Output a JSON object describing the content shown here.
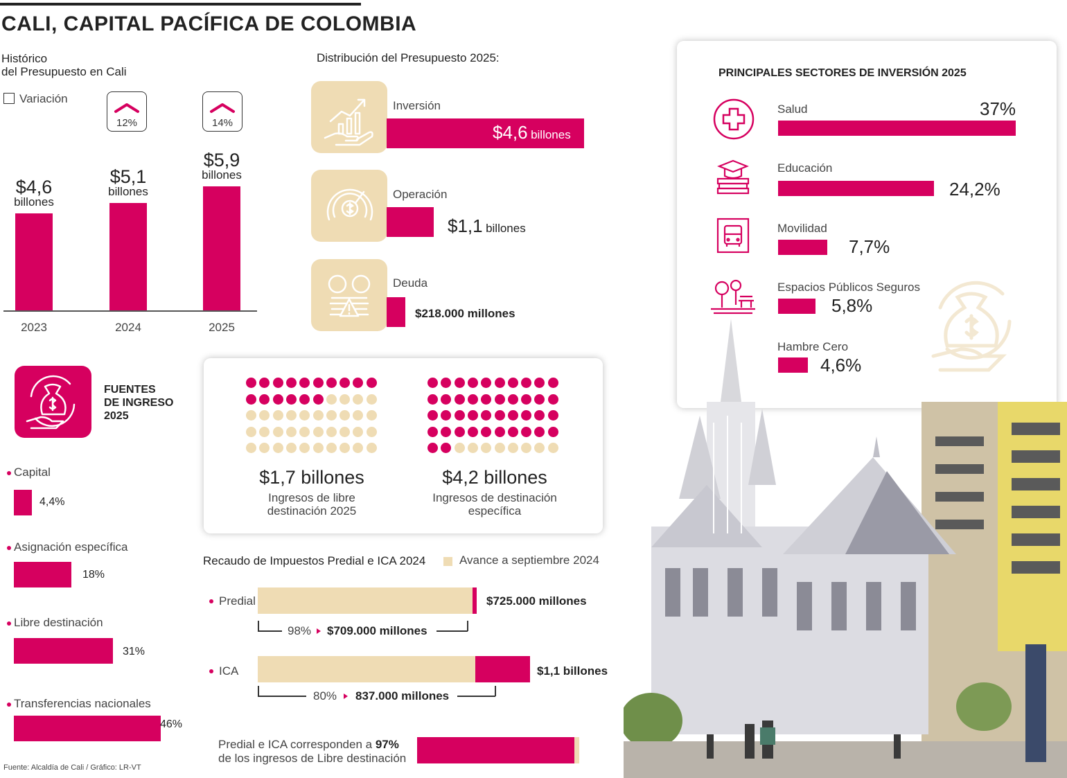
{
  "title": "CALI, CAPITAL PACÍFICA DE COLOMBIA",
  "source": "Fuente: Alcaldía de Cali / Gráfico: LR-VT",
  "colors": {
    "accent": "#d6005f",
    "secondary": "#efdcb4",
    "text": "#222222"
  },
  "historic": {
    "title_line1": "Histórico",
    "title_line2": "del Presupuesto en Cali",
    "legend": "Variación",
    "unit": "billones",
    "variations": [
      "12%",
      "14%"
    ]
  },
  "distribution": {
    "title": "Distribución del Presupuesto 2025:",
    "items": [
      {
        "label": "Inversión",
        "value": "$4,6",
        "unit": "billones",
        "icon": "investment-hand-chart-icon"
      },
      {
        "label": "Operación",
        "value": "$1,1",
        "unit": "billones",
        "icon": "gauge-dollar-icon"
      },
      {
        "label": "Deuda",
        "value": "$218.000 millones",
        "unit": "",
        "icon": "debt-coins-warning-icon"
      }
    ]
  },
  "sectors": {
    "title": "PRINCIPALES SECTORES DE INVERSIÓN 2025",
    "items": [
      {
        "label": "Salud",
        "value": "37%",
        "icon": "health-cross-icon"
      },
      {
        "label": "Educación",
        "value": "24,2%",
        "icon": "education-books-icon"
      },
      {
        "label": "Movilidad",
        "value": "7,7%",
        "icon": "bus-icon"
      },
      {
        "label": "Espacios Públicos Seguros",
        "value": "5,8%",
        "icon": "park-bench-icon"
      },
      {
        "label": "Hambre Cero",
        "value": "4,6%",
        "icon": ""
      }
    ]
  },
  "sources": {
    "title_lines": [
      "FUENTES",
      "DE INGRESO",
      "2025"
    ],
    "icon": "money-bag-cycle-icon",
    "items": [
      {
        "label": "Capital",
        "value": "4,4%"
      },
      {
        "label": "Asignación específica",
        "value": "18%"
      },
      {
        "label": "Libre destinación",
        "value": "31%"
      },
      {
        "label": "Transferencias nacionales",
        "value": "46%"
      }
    ]
  },
  "waffle": {
    "items": [
      {
        "value": "$1,7 billones",
        "caption_line1": "Ingresos de libre",
        "caption_line2": "destinación 2025",
        "filled": 16,
        "total": 50
      },
      {
        "value": "$4,2 billones",
        "caption_line1": "Ingresos de destinación",
        "caption_line2": "específica",
        "filled": 42,
        "total": 50
      }
    ]
  },
  "tax": {
    "title": "Recaudo de Impuestos Predial e ICA 2024",
    "legend": "Avance a septiembre 2024",
    "items": [
      {
        "label": "Predial",
        "total": "$725.000 millones",
        "pct": "98%",
        "progress": "$709.000 millones"
      },
      {
        "label": "ICA",
        "total": "$1,1 billones",
        "pct": "80%",
        "progress": "837.000 millones"
      }
    ],
    "note_line1_prefix": "Predial e ICA corresponden a ",
    "note_line1_bold": "97%",
    "note_line2": "de los ingresos de Libre destinación"
  },
  "chart_data": [
    {
      "type": "bar",
      "title": "Histórico del Presupuesto en Cali",
      "categories": [
        "2023",
        "2024",
        "2025"
      ],
      "values": [
        4.6,
        5.1,
        5.9
      ],
      "value_labels": [
        "$4,6",
        "$5,1",
        "$5,9"
      ],
      "unit": "billones",
      "variation": [
        "",
        "12%",
        "14%"
      ]
    },
    {
      "type": "bar",
      "title": "Distribución del Presupuesto 2025:",
      "categories": [
        "Inversión",
        "Operación",
        "Deuda"
      ],
      "values": [
        4.6,
        1.1,
        0.218
      ],
      "unit": "billones"
    },
    {
      "type": "bar",
      "title": "PRINCIPALES SECTORES DE INVERSIÓN 2025",
      "categories": [
        "Salud",
        "Educación",
        "Movilidad",
        "Espacios Públicos Seguros",
        "Hambre Cero"
      ],
      "values": [
        37,
        24.2,
        7.7,
        5.8,
        4.6
      ],
      "unit": "%"
    },
    {
      "type": "bar",
      "title": "FUENTES DE INGRESO 2025",
      "categories": [
        "Capital",
        "Asignación específica",
        "Libre destinación",
        "Transferencias nacionales"
      ],
      "values": [
        4.4,
        18,
        31,
        46
      ],
      "unit": "%"
    },
    {
      "type": "bar",
      "title": "Recaudo de Impuestos Predial e ICA 2024",
      "categories": [
        "Predial",
        "ICA"
      ],
      "series": [
        {
          "name": "Avance a septiembre 2024",
          "values": [
            98,
            80
          ]
        }
      ],
      "unit": "%",
      "ylim": [
        0,
        100
      ]
    },
    {
      "type": "bar",
      "categories": [
        "Predial e ICA"
      ],
      "values": [
        97
      ],
      "unit": "%",
      "ylim": [
        0,
        100
      ]
    }
  ]
}
